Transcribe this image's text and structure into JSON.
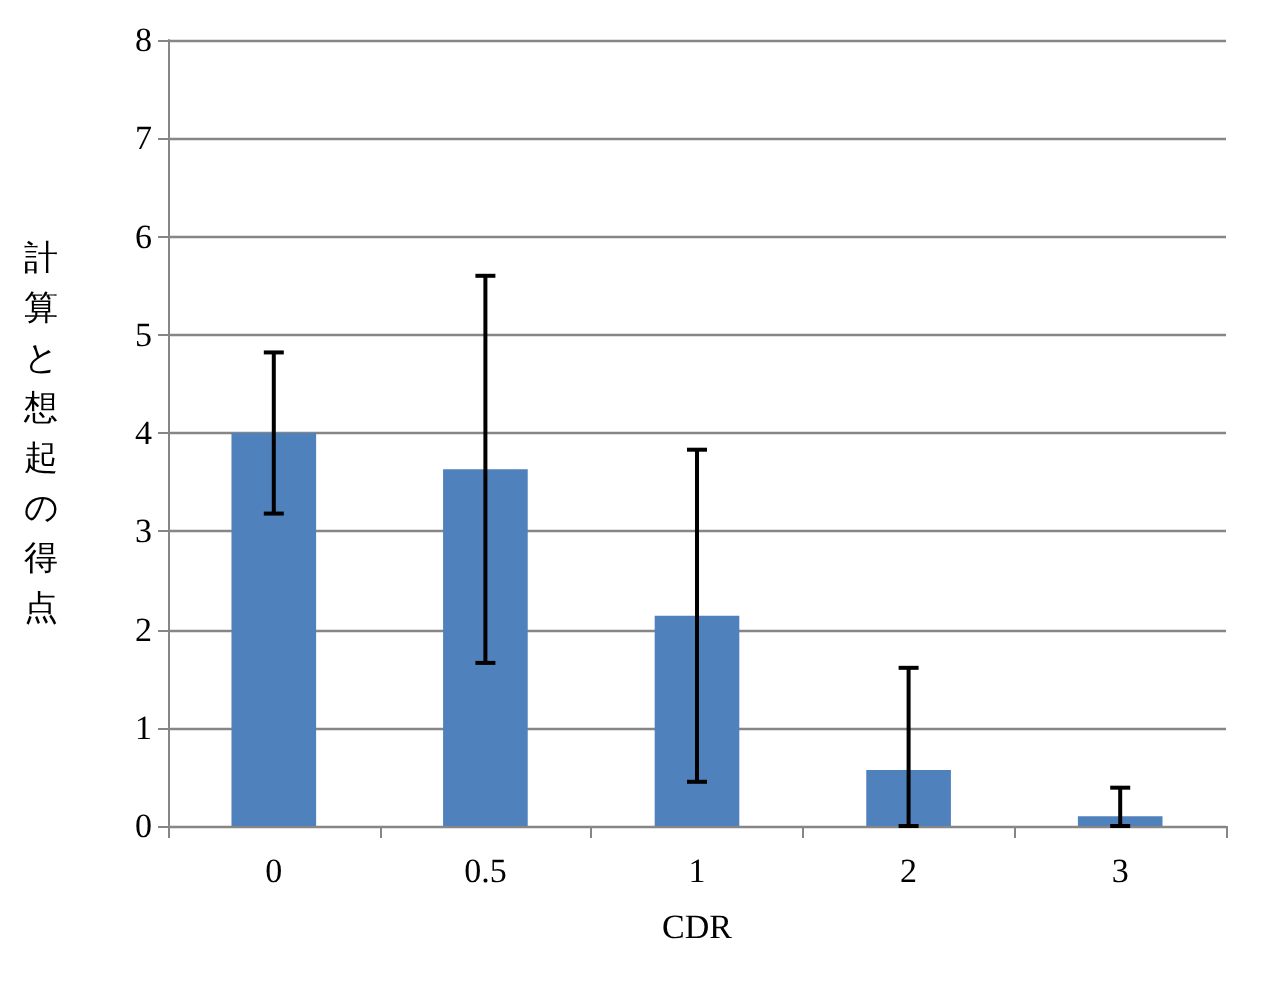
{
  "chart_data": {
    "type": "bar",
    "xlabel": "CDR",
    "ylabel": "計算と想起の得点",
    "categories": [
      "0",
      "0.5",
      "1",
      "2",
      "3"
    ],
    "values": [
      4.0,
      3.63,
      2.14,
      0.57,
      0.1
    ],
    "errors": [
      0.82,
      1.97,
      1.69,
      [
        0,
        1.61
      ],
      [
        0,
        0.39
      ]
    ],
    "color": "#4f81bd",
    "ylim": [
      0,
      8
    ],
    "yticks": [
      0,
      1,
      2,
      3,
      4,
      5,
      6,
      7,
      8
    ],
    "grid": "y"
  }
}
